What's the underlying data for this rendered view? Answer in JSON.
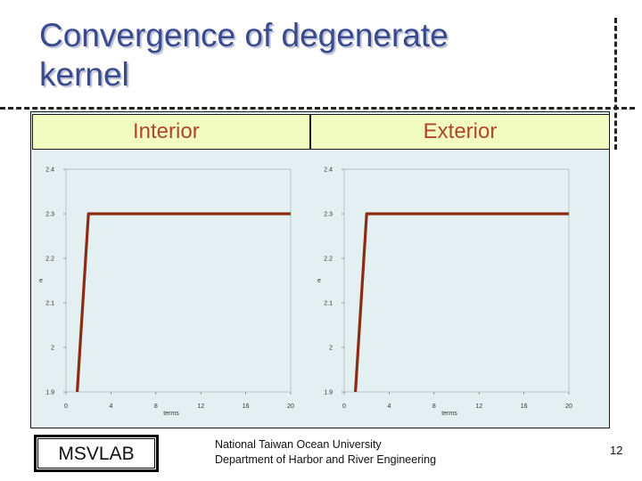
{
  "slide": {
    "title": "Convergence of degenerate kernel",
    "headers": {
      "left": "Interior",
      "right": "Exterior"
    },
    "footer": {
      "lab": "MSVLAB",
      "university": "National Taiwan Ocean University",
      "department": "Department of Harbor and River Engineering",
      "page": "12"
    }
  },
  "chart_data": [
    {
      "type": "line",
      "title": "Interior",
      "xlabel": "terms",
      "ylabel": "e",
      "xlim": [
        0,
        20
      ],
      "ylim": [
        1.9,
        2.4
      ],
      "xticks": [
        0,
        4,
        8,
        12,
        16,
        20
      ],
      "yticks": [
        1.9,
        2,
        2.1,
        2.2,
        2.3,
        2.4
      ],
      "series": [
        {
          "x": [
            1,
            2,
            20
          ],
          "y": [
            1.9,
            2.3,
            2.3
          ],
          "color": "#8b2d12"
        }
      ]
    },
    {
      "type": "line",
      "title": "Exterior",
      "xlabel": "terms",
      "ylabel": "e",
      "xlim": [
        0,
        20
      ],
      "ylim": [
        1.9,
        2.4
      ],
      "xticks": [
        0,
        4,
        8,
        12,
        16,
        20
      ],
      "yticks": [
        1.9,
        2,
        2.1,
        2.2,
        2.3,
        2.4
      ],
      "series": [
        {
          "x": [
            1,
            2,
            20
          ],
          "y": [
            1.9,
            2.3,
            2.3
          ],
          "color": "#8b2d12"
        }
      ]
    }
  ]
}
